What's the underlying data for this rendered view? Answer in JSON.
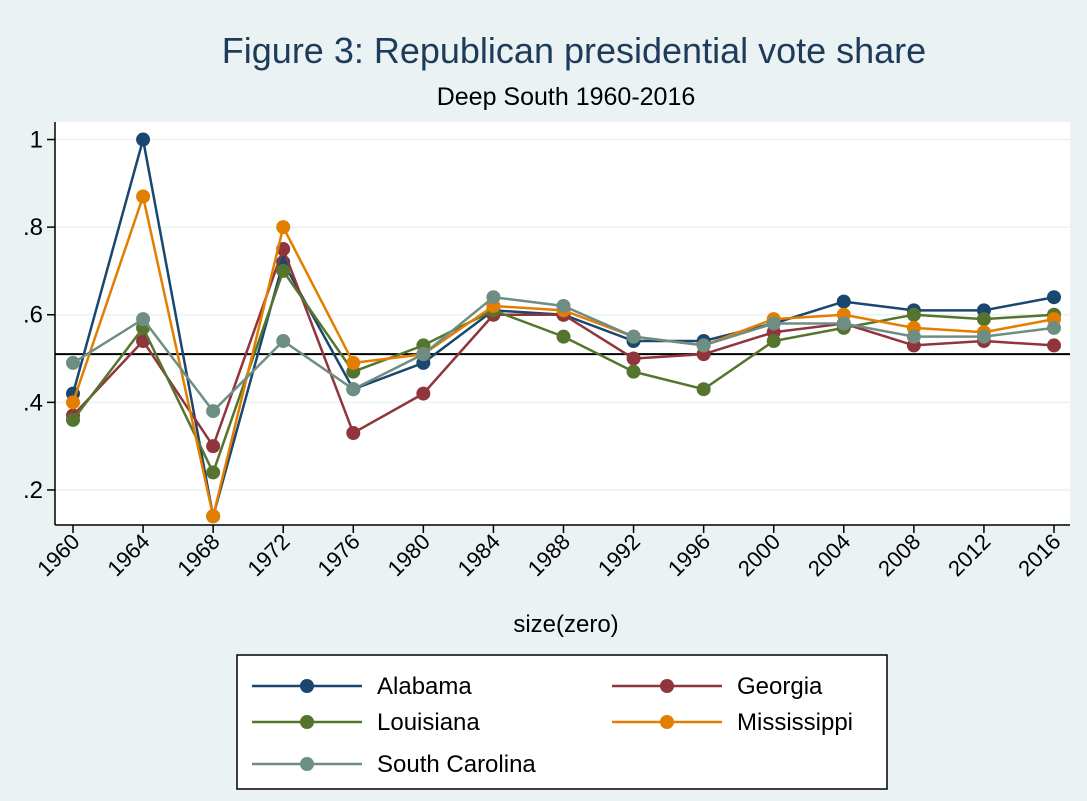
{
  "chart_data": {
    "type": "line",
    "title": "Figure 3: Republican presidential vote share",
    "subtitle": "Deep South 1960-2016",
    "xlabel": "size(zero)",
    "ylabel": "",
    "x": [
      "1960",
      "1964",
      "1968",
      "1972",
      "1976",
      "1980",
      "1984",
      "1988",
      "1992",
      "1996",
      "2000",
      "2004",
      "2008",
      "2012",
      "2016"
    ],
    "ylim": [
      0.12,
      1.04
    ],
    "yticks": [
      0.2,
      0.4,
      0.6,
      0.8,
      1
    ],
    "ytick_labels": [
      ".2",
      ".4",
      ".6",
      ".8",
      "1"
    ],
    "grid": true,
    "legend_position": "bottom",
    "reference_line": 0.51,
    "series": [
      {
        "name": "Alabama",
        "color": "#1a476f",
        "values": [
          0.42,
          1.0,
          0.14,
          0.72,
          0.43,
          0.49,
          0.61,
          0.6,
          0.54,
          0.54,
          0.58,
          0.63,
          0.61,
          0.61,
          0.64
        ]
      },
      {
        "name": "Georgia",
        "color": "#90353b",
        "values": [
          0.37,
          0.54,
          0.3,
          0.75,
          0.33,
          0.42,
          0.6,
          0.6,
          0.5,
          0.51,
          0.56,
          0.58,
          0.53,
          0.54,
          0.53
        ]
      },
      {
        "name": "Louisiana",
        "color": "#55752f",
        "values": [
          0.36,
          0.57,
          0.24,
          0.7,
          0.47,
          0.53,
          0.61,
          0.55,
          0.47,
          0.43,
          0.54,
          0.57,
          0.6,
          0.59,
          0.6
        ]
      },
      {
        "name": "Mississippi",
        "color": "#e37e00",
        "values": [
          0.4,
          0.87,
          0.14,
          0.8,
          0.49,
          0.51,
          0.62,
          0.61,
          0.55,
          0.53,
          0.59,
          0.6,
          0.57,
          0.56,
          0.59
        ]
      },
      {
        "name": "South Carolina",
        "color": "#6e8e84",
        "values": [
          0.49,
          0.59,
          0.38,
          0.54,
          0.43,
          0.51,
          0.64,
          0.62,
          0.55,
          0.53,
          0.58,
          0.58,
          0.55,
          0.55,
          0.57
        ]
      }
    ]
  }
}
